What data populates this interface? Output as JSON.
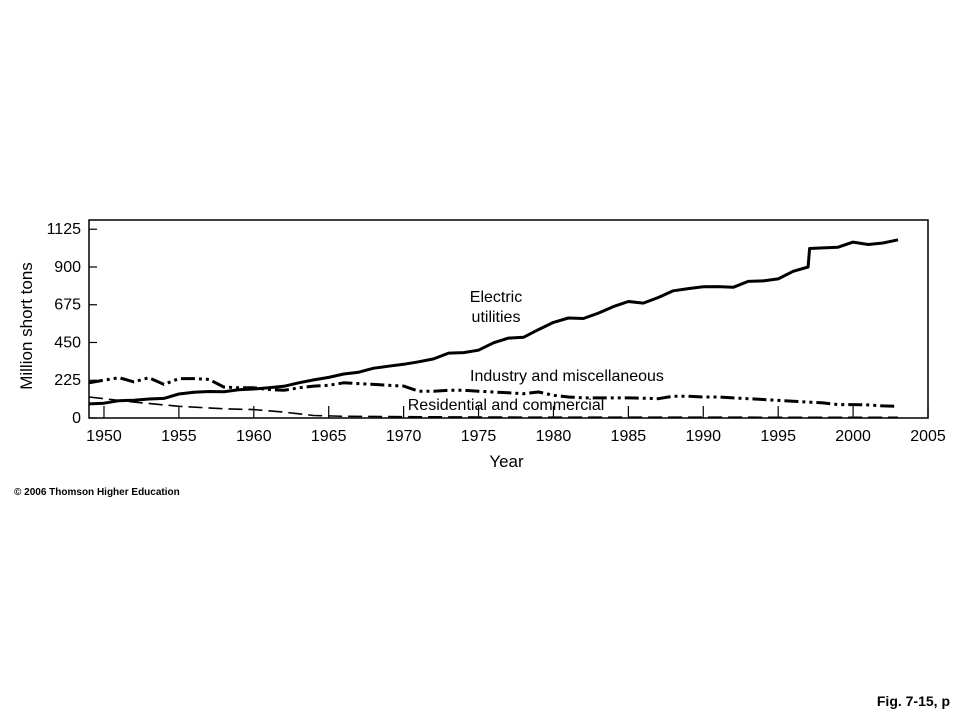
{
  "chart_data": {
    "type": "line",
    "title": "",
    "xlabel": "Year",
    "ylabel": "Million short tons",
    "xlim": [
      1949,
      2005
    ],
    "ylim": [
      0,
      1180
    ],
    "x_ticks": [
      "1950",
      "1955",
      "1960",
      "1965",
      "1970",
      "1975",
      "1980",
      "1985",
      "1990",
      "1995",
      "2000",
      "2005"
    ],
    "y_ticks": [
      "0",
      "225",
      "450",
      "675",
      "900",
      "1125"
    ],
    "grid": false,
    "legend": "none",
    "series": [
      {
        "name": "Electric utilities",
        "line_style": "solid",
        "x": [
          1949,
          1950,
          1951,
          1952,
          1953,
          1954,
          1955,
          1956,
          1957,
          1958,
          1959,
          1960,
          1961,
          1962,
          1963,
          1964,
          1965,
          1966,
          1967,
          1968,
          1969,
          1970,
          1971,
          1972,
          1973,
          1974,
          1975,
          1976,
          1977,
          1978,
          1979,
          1980,
          1981,
          1982,
          1983,
          1984,
          1985,
          1986,
          1987,
          1988,
          1989,
          1990,
          1991,
          1992,
          1993,
          1994,
          1995,
          1996,
          1997,
          1997.1,
          1998,
          1999,
          2000,
          2001,
          2002,
          2003
        ],
        "y": [
          84,
          88,
          103,
          106,
          113,
          117,
          143,
          154,
          158,
          157,
          168,
          173,
          180,
          189,
          210,
          227,
          242,
          262,
          273,
          297,
          309,
          320,
          335,
          352,
          387,
          390,
          404,
          448,
          476,
          481,
          527,
          570,
          596,
          593,
          625,
          664,
          694,
          685,
          718,
          758,
          771,
          782,
          783,
          779,
          814,
          817,
          829,
          874,
          900,
          1010,
          1014,
          1018,
          1048,
          1034,
          1043,
          1062
        ]
      },
      {
        "name": "Industry and miscellaneous",
        "line_style": "dash-dot-dot",
        "x": [
          1949,
          1950,
          1951,
          1952,
          1953,
          1954,
          1955,
          1956,
          1957,
          1958,
          1959,
          1960,
          1961,
          1962,
          1963,
          1964,
          1965,
          1966,
          1967,
          1968,
          1969,
          1970,
          1971,
          1972,
          1973,
          1974,
          1975,
          1976,
          1977,
          1978,
          1979,
          1980,
          1981,
          1982,
          1983,
          1984,
          1985,
          1986,
          1987,
          1988,
          1989,
          1990,
          1991,
          1992,
          1993,
          1994,
          1995,
          1996,
          1997,
          1998,
          1999,
          2000,
          2001,
          2002,
          2003
        ],
        "y": [
          210,
          225,
          240,
          215,
          240,
          200,
          235,
          235,
          230,
          185,
          180,
          180,
          170,
          165,
          180,
          190,
          195,
          210,
          205,
          200,
          195,
          190,
          160,
          160,
          165,
          165,
          160,
          155,
          150,
          145,
          155,
          135,
          125,
          120,
          120,
          120,
          120,
          118,
          115,
          130,
          130,
          125,
          125,
          120,
          115,
          110,
          105,
          100,
          95,
          90,
          80,
          80,
          78,
          72,
          70
        ]
      },
      {
        "name": "Residential and commercial",
        "line_style": "dashed",
        "x": [
          1949,
          1950,
          1952,
          1955,
          1958,
          1960,
          1962,
          1964,
          1966,
          1970,
          1975,
          1980,
          1990,
          2000,
          2003
        ],
        "y": [
          125,
          115,
          95,
          70,
          55,
          50,
          35,
          15,
          10,
          8,
          6,
          5,
          5,
          4,
          4
        ]
      }
    ],
    "annotations": [
      {
        "line": "Electric",
        "series": "Electric utilities"
      },
      {
        "line": "utilities",
        "series": "Electric utilities"
      },
      {
        "line": "Industry and miscellaneous",
        "series": "Industry and miscellaneous"
      },
      {
        "line": "Residential and commercial",
        "series": "Residential and commercial"
      }
    ]
  },
  "footer": {
    "copyright": "© 2006 Thomson Higher Education",
    "figure_label": "Fig. 7-15, p"
  }
}
